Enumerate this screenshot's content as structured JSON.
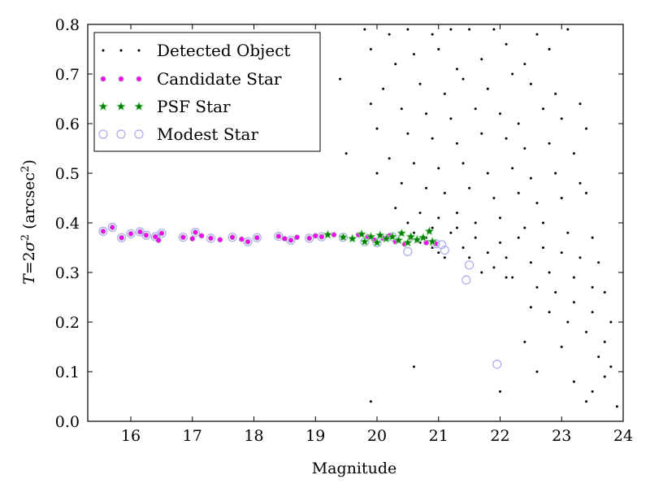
{
  "chart_data": {
    "type": "scatter",
    "xlabel": "Magnitude",
    "ylabel": "T = 2σ² (arcsec²)",
    "ylabel_parts": {
      "t": "T",
      "eq": "=2",
      "sigma": "σ",
      "two_sup": "2",
      "unit_open": "(arcsec",
      "unit_sup": "2",
      "unit_close": ")"
    },
    "xlim": [
      15.3,
      24
    ],
    "ylim": [
      0.0,
      0.8
    ],
    "x_ticks": [
      16,
      17,
      18,
      19,
      20,
      21,
      22,
      23,
      24
    ],
    "x_tick_labels": [
      "16",
      "17",
      "18",
      "19",
      "20",
      "21",
      "22",
      "23",
      "24"
    ],
    "y_ticks": [
      0.0,
      0.1,
      0.2,
      0.3,
      0.4,
      0.5,
      0.6,
      0.7,
      0.8
    ],
    "y_tick_labels": [
      "0.0",
      "0.1",
      "0.2",
      "0.3",
      "0.4",
      "0.5",
      "0.6",
      "0.7",
      "0.8"
    ],
    "grid": false,
    "legend_position": "top-left",
    "series": [
      {
        "name": "Detected Object",
        "marker": "dot",
        "color": "#000000",
        "points": [
          [
            19.8,
            0.79
          ],
          [
            19.9,
            0.75
          ],
          [
            20.2,
            0.78
          ],
          [
            20.5,
            0.79
          ],
          [
            20.9,
            0.78
          ],
          [
            21.2,
            0.79
          ],
          [
            21.5,
            0.79
          ],
          [
            21.9,
            0.79
          ],
          [
            22.6,
            0.78
          ],
          [
            23.1,
            0.79
          ],
          [
            20.3,
            0.72
          ],
          [
            20.6,
            0.74
          ],
          [
            21.0,
            0.75
          ],
          [
            21.3,
            0.71
          ],
          [
            21.7,
            0.73
          ],
          [
            22.1,
            0.76
          ],
          [
            22.4,
            0.72
          ],
          [
            22.8,
            0.75
          ],
          [
            19.4,
            0.69
          ],
          [
            20.1,
            0.67
          ],
          [
            20.7,
            0.68
          ],
          [
            21.1,
            0.66
          ],
          [
            21.4,
            0.69
          ],
          [
            21.8,
            0.67
          ],
          [
            22.2,
            0.7
          ],
          [
            22.5,
            0.68
          ],
          [
            22.9,
            0.66
          ],
          [
            23.3,
            0.64
          ],
          [
            19.9,
            0.64
          ],
          [
            20.4,
            0.63
          ],
          [
            20.8,
            0.62
          ],
          [
            21.2,
            0.61
          ],
          [
            21.6,
            0.63
          ],
          [
            22.0,
            0.62
          ],
          [
            22.3,
            0.6
          ],
          [
            22.7,
            0.63
          ],
          [
            23.0,
            0.61
          ],
          [
            23.4,
            0.59
          ],
          [
            20.0,
            0.59
          ],
          [
            20.5,
            0.58
          ],
          [
            20.9,
            0.57
          ],
          [
            21.3,
            0.56
          ],
          [
            21.7,
            0.58
          ],
          [
            22.1,
            0.57
          ],
          [
            22.4,
            0.55
          ],
          [
            22.8,
            0.56
          ],
          [
            23.2,
            0.54
          ],
          [
            19.5,
            0.54
          ],
          [
            20.2,
            0.53
          ],
          [
            20.6,
            0.52
          ],
          [
            21.0,
            0.51
          ],
          [
            21.4,
            0.52
          ],
          [
            21.8,
            0.5
          ],
          [
            22.2,
            0.51
          ],
          [
            22.5,
            0.49
          ],
          [
            22.9,
            0.5
          ],
          [
            23.3,
            0.48
          ],
          [
            20.0,
            0.5
          ],
          [
            20.4,
            0.48
          ],
          [
            20.8,
            0.47
          ],
          [
            21.1,
            0.46
          ],
          [
            21.5,
            0.47
          ],
          [
            21.9,
            0.45
          ],
          [
            22.3,
            0.46
          ],
          [
            22.6,
            0.44
          ],
          [
            23.0,
            0.45
          ],
          [
            23.4,
            0.46
          ],
          [
            20.3,
            0.43
          ],
          [
            20.7,
            0.42
          ],
          [
            21.0,
            0.41
          ],
          [
            21.3,
            0.42
          ],
          [
            21.6,
            0.4
          ],
          [
            22.0,
            0.41
          ],
          [
            22.4,
            0.39
          ],
          [
            22.7,
            0.4
          ],
          [
            23.1,
            0.38
          ],
          [
            23.5,
            0.37
          ],
          [
            20.5,
            0.4
          ],
          [
            20.9,
            0.39
          ],
          [
            21.2,
            0.38
          ],
          [
            21.6,
            0.37
          ],
          [
            22.0,
            0.36
          ],
          [
            22.3,
            0.37
          ],
          [
            22.7,
            0.35
          ],
          [
            23.0,
            0.34
          ],
          [
            23.3,
            0.33
          ],
          [
            23.6,
            0.32
          ],
          [
            21.4,
            0.35
          ],
          [
            21.8,
            0.34
          ],
          [
            22.1,
            0.33
          ],
          [
            22.5,
            0.32
          ],
          [
            22.8,
            0.3
          ],
          [
            23.2,
            0.29
          ],
          [
            23.5,
            0.27
          ],
          [
            23.7,
            0.26
          ],
          [
            21.7,
            0.3
          ],
          [
            22.2,
            0.29
          ],
          [
            22.6,
            0.27
          ],
          [
            22.9,
            0.26
          ],
          [
            23.2,
            0.24
          ],
          [
            23.5,
            0.22
          ],
          [
            23.8,
            0.2
          ],
          [
            22.5,
            0.23
          ],
          [
            22.8,
            0.22
          ],
          [
            23.1,
            0.2
          ],
          [
            23.4,
            0.18
          ],
          [
            23.7,
            0.16
          ],
          [
            22.4,
            0.16
          ],
          [
            23.0,
            0.15
          ],
          [
            23.6,
            0.13
          ],
          [
            23.8,
            0.11
          ],
          [
            22.6,
            0.1
          ],
          [
            23.2,
            0.08
          ],
          [
            23.5,
            0.06
          ],
          [
            23.9,
            0.03
          ],
          [
            19.9,
            0.04
          ],
          [
            20.6,
            0.11
          ],
          [
            22.0,
            0.06
          ],
          [
            23.4,
            0.04
          ],
          [
            23.7,
            0.09
          ],
          [
            20.7,
            0.36
          ],
          [
            20.9,
            0.35
          ],
          [
            21.0,
            0.34
          ],
          [
            20.8,
            0.37
          ],
          [
            21.1,
            0.33
          ],
          [
            20.6,
            0.38
          ],
          [
            21.3,
            0.39
          ],
          [
            21.5,
            0.33
          ],
          [
            21.9,
            0.31
          ],
          [
            22.1,
            0.29
          ]
        ]
      },
      {
        "name": "Candidate Star",
        "marker": "circle-small",
        "color": "#ff00ff",
        "points": [
          [
            15.55,
            0.383
          ],
          [
            15.7,
            0.391
          ],
          [
            15.85,
            0.37
          ],
          [
            16.0,
            0.378
          ],
          [
            16.15,
            0.382
          ],
          [
            16.25,
            0.375
          ],
          [
            16.4,
            0.372
          ],
          [
            16.5,
            0.379
          ],
          [
            16.45,
            0.365
          ],
          [
            16.85,
            0.371
          ],
          [
            17.0,
            0.368
          ],
          [
            17.05,
            0.381
          ],
          [
            17.15,
            0.374
          ],
          [
            17.3,
            0.369
          ],
          [
            17.45,
            0.366
          ],
          [
            17.65,
            0.371
          ],
          [
            17.8,
            0.367
          ],
          [
            17.9,
            0.362
          ],
          [
            18.05,
            0.37
          ],
          [
            18.4,
            0.373
          ],
          [
            18.5,
            0.368
          ],
          [
            18.6,
            0.365
          ],
          [
            18.7,
            0.371
          ],
          [
            18.9,
            0.369
          ],
          [
            19.0,
            0.374
          ],
          [
            19.1,
            0.372
          ],
          [
            19.3,
            0.376
          ],
          [
            19.45,
            0.371
          ],
          [
            19.6,
            0.368
          ],
          [
            19.7,
            0.376
          ],
          [
            19.85,
            0.372
          ],
          [
            19.95,
            0.366
          ],
          [
            20.1,
            0.369
          ],
          [
            20.2,
            0.374
          ],
          [
            20.3,
            0.362
          ],
          [
            20.45,
            0.357
          ],
          [
            20.55,
            0.37
          ],
          [
            20.65,
            0.365
          ],
          [
            20.8,
            0.36
          ],
          [
            20.95,
            0.358
          ]
        ]
      },
      {
        "name": "PSF Star",
        "marker": "star",
        "color": "#008000",
        "points": [
          [
            19.2,
            0.376
          ],
          [
            19.45,
            0.371
          ],
          [
            19.6,
            0.368
          ],
          [
            19.75,
            0.377
          ],
          [
            19.8,
            0.362
          ],
          [
            19.9,
            0.372
          ],
          [
            20.0,
            0.36
          ],
          [
            20.05,
            0.375
          ],
          [
            20.15,
            0.368
          ],
          [
            20.25,
            0.372
          ],
          [
            20.35,
            0.365
          ],
          [
            20.4,
            0.379
          ],
          [
            20.5,
            0.36
          ],
          [
            20.55,
            0.372
          ],
          [
            20.65,
            0.366
          ],
          [
            20.75,
            0.37
          ],
          [
            20.85,
            0.383
          ],
          [
            20.9,
            0.362
          ]
        ]
      },
      {
        "name": "Modest Star",
        "marker": "circle-open",
        "color": "#aaaaee",
        "points": [
          [
            15.55,
            0.383
          ],
          [
            15.7,
            0.391
          ],
          [
            15.85,
            0.37
          ],
          [
            16.0,
            0.378
          ],
          [
            16.15,
            0.382
          ],
          [
            16.25,
            0.375
          ],
          [
            16.4,
            0.372
          ],
          [
            16.5,
            0.379
          ],
          [
            16.85,
            0.371
          ],
          [
            17.05,
            0.381
          ],
          [
            17.3,
            0.369
          ],
          [
            17.65,
            0.371
          ],
          [
            17.9,
            0.362
          ],
          [
            18.05,
            0.37
          ],
          [
            18.4,
            0.373
          ],
          [
            18.6,
            0.365
          ],
          [
            18.9,
            0.369
          ],
          [
            19.1,
            0.372
          ],
          [
            19.45,
            0.371
          ],
          [
            19.8,
            0.362
          ],
          [
            20.0,
            0.36
          ],
          [
            20.25,
            0.372
          ],
          [
            20.5,
            0.342
          ],
          [
            20.95,
            0.358
          ],
          [
            21.05,
            0.356
          ],
          [
            21.1,
            0.345
          ],
          [
            21.5,
            0.315
          ],
          [
            21.45,
            0.285
          ],
          [
            21.95,
            0.115
          ]
        ]
      }
    ]
  }
}
